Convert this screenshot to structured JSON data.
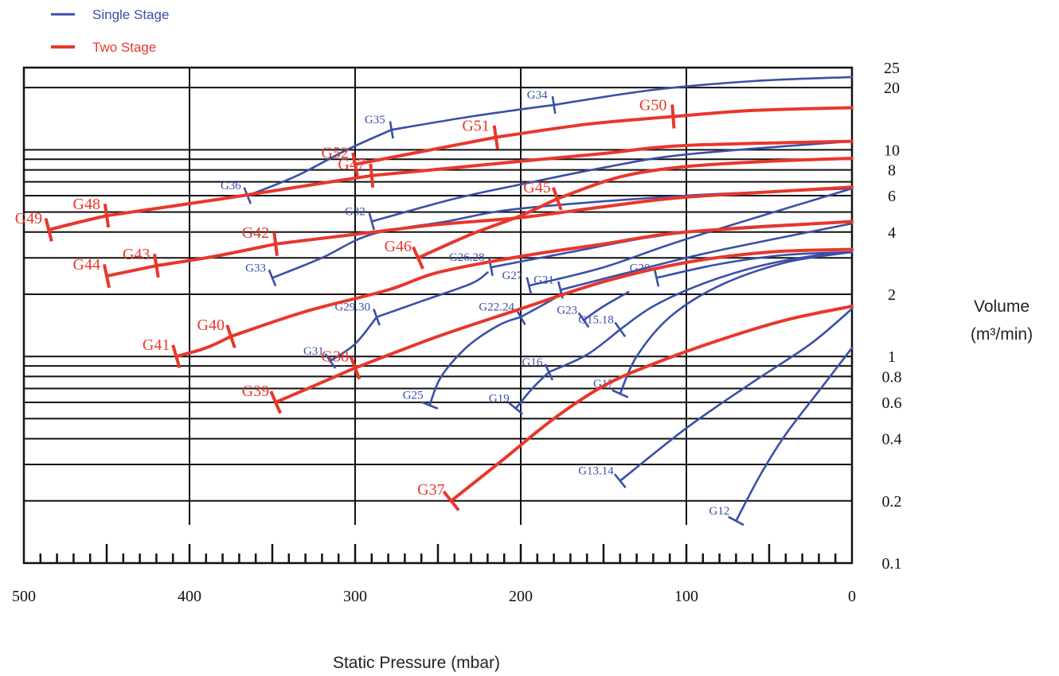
{
  "legend": [
    {
      "label": "Single Stage",
      "color": "#3a4fa8"
    },
    {
      "label": "Two Stage",
      "color": "#e8372c"
    }
  ],
  "colors": {
    "single": "#3a4fa8",
    "two": "#e8372c",
    "grid": "#111111"
  },
  "chart_data": {
    "type": "line",
    "xlabel": "Static Pressure (mbar)",
    "ylabel_line1": "Volume",
    "ylabel_line2": "(m³/min)",
    "x_range": [
      500,
      0
    ],
    "x_reversed": true,
    "y_scale": "log",
    "y_range": [
      0.1,
      25
    ],
    "grid": true,
    "legend_position": "top-left",
    "x_ticks": [
      {
        "value": 500,
        "label": "500"
      },
      {
        "value": 400,
        "label": "400"
      },
      {
        "value": 300,
        "label": "300"
      },
      {
        "value": 200,
        "label": "200"
      },
      {
        "value": 100,
        "label": "100"
      },
      {
        "value": 0,
        "label": "0"
      }
    ],
    "y_ticks": [
      {
        "value": 25,
        "label": "25"
      },
      {
        "value": 20,
        "label": "20"
      },
      {
        "value": 10,
        "label": "10"
      },
      {
        "value": 8,
        "label": "8"
      },
      {
        "value": 6,
        "label": "6"
      },
      {
        "value": 4,
        "label": "4"
      },
      {
        "value": 2,
        "label": "2"
      },
      {
        "value": 1,
        "label": "1"
      },
      {
        "value": 0.8,
        "label": "0.8"
      },
      {
        "value": 0.6,
        "label": "0.6"
      },
      {
        "value": 0.4,
        "label": "0.4"
      },
      {
        "value": 0.2,
        "label": "0.2"
      },
      {
        "value": 0.1,
        "label": "0.1"
      }
    ],
    "series": [
      {
        "name": "G34",
        "stage": "single",
        "points": [
          [
            180,
            16.5
          ],
          [
            120,
            19.5
          ],
          [
            60,
            21.5
          ],
          [
            0,
            22.5
          ]
        ]
      },
      {
        "name": "G35",
        "stage": "single",
        "points": [
          [
            278,
            12.5
          ],
          [
            230,
            14.5
          ],
          [
            180,
            16.5
          ]
        ]
      },
      {
        "name": "G36",
        "stage": "single",
        "points": [
          [
            365,
            6
          ],
          [
            335,
            7.5
          ],
          [
            305,
            10
          ],
          [
            278,
            12.5
          ]
        ]
      },
      {
        "name": "G32",
        "stage": "single",
        "points": [
          [
            290,
            4.5
          ],
          [
            240,
            5.8
          ],
          [
            200,
            6.8
          ],
          [
            150,
            8.2
          ],
          [
            100,
            9.5
          ],
          [
            0,
            11
          ]
        ]
      },
      {
        "name": "G33",
        "stage": "single",
        "points": [
          [
            350,
            2.4
          ],
          [
            320,
            3
          ],
          [
            290,
            3.9
          ],
          [
            245,
            4.5
          ],
          [
            200,
            5.2
          ],
          [
            100,
            6
          ],
          [
            0,
            6.5
          ]
        ]
      },
      {
        "name": "G26.28",
        "stage": "single",
        "points": [
          [
            218,
            2.7
          ],
          [
            170,
            3.2
          ],
          [
            120,
            3.8
          ],
          [
            70,
            4.2
          ],
          [
            0,
            4.5
          ]
        ]
      },
      {
        "name": "G29.30",
        "stage": "single",
        "points": [
          [
            287,
            1.55
          ],
          [
            260,
            1.85
          ],
          [
            230,
            2.25
          ],
          [
            220,
            2.55
          ]
        ]
      },
      {
        "name": "G31",
        "stage": "single",
        "points": [
          [
            315,
            0.95
          ],
          [
            300,
            1.15
          ],
          [
            287,
            1.55
          ]
        ]
      },
      {
        "name": "G27",
        "stage": "single",
        "points": [
          [
            195,
            2.2
          ],
          [
            150,
            2.7
          ],
          [
            100,
            3.7
          ],
          [
            0,
            6.5
          ]
        ]
      },
      {
        "name": "G21",
        "stage": "single",
        "points": [
          [
            176,
            2.1
          ],
          [
            135,
            2.55
          ],
          [
            85,
            3.2
          ],
          [
            0,
            4.4
          ]
        ]
      },
      {
        "name": "G22.24",
        "stage": "single",
        "points": [
          [
            200,
            1.55
          ],
          [
            178,
            1.95
          ],
          [
            176,
            2.1
          ]
        ]
      },
      {
        "name": "G25",
        "stage": "single",
        "points": [
          [
            255,
            0.58
          ],
          [
            248,
            0.8
          ],
          [
            232,
            1.12
          ],
          [
            213,
            1.42
          ],
          [
            200,
            1.55
          ]
        ]
      },
      {
        "name": "G23",
        "stage": "single",
        "points": [
          [
            162,
            1.5
          ],
          [
            150,
            1.75
          ],
          [
            135,
            2.05
          ]
        ]
      },
      {
        "name": "G20",
        "stage": "single",
        "points": [
          [
            118,
            2.4
          ],
          [
            80,
            2.8
          ],
          [
            40,
            3.1
          ],
          [
            0,
            3.2
          ]
        ]
      },
      {
        "name": "G15.18",
        "stage": "single",
        "points": [
          [
            140,
            1.35
          ],
          [
            120,
            1.75
          ],
          [
            90,
            2.25
          ],
          [
            55,
            2.75
          ],
          [
            20,
            3.1
          ],
          [
            0,
            3.2
          ]
        ]
      },
      {
        "name": "G16",
        "stage": "single",
        "points": [
          [
            183,
            0.84
          ],
          [
            160,
            1.02
          ],
          [
            140,
            1.35
          ]
        ]
      },
      {
        "name": "G19",
        "stage": "single",
        "points": [
          [
            203,
            0.56
          ],
          [
            193,
            0.7
          ],
          [
            183,
            0.84
          ]
        ]
      },
      {
        "name": "G17",
        "stage": "single",
        "points": [
          [
            140,
            0.66
          ],
          [
            130,
            1.0
          ],
          [
            110,
            1.55
          ],
          [
            80,
            2.2
          ],
          [
            40,
            2.85
          ],
          [
            0,
            3.2
          ]
        ]
      },
      {
        "name": "G13.14",
        "stage": "single",
        "points": [
          [
            140,
            0.25
          ],
          [
            100,
            0.45
          ],
          [
            60,
            0.75
          ],
          [
            25,
            1.15
          ],
          [
            0,
            1.7
          ]
        ]
      },
      {
        "name": "G12",
        "stage": "single",
        "points": [
          [
            70,
            0.16
          ],
          [
            55,
            0.27
          ],
          [
            40,
            0.42
          ],
          [
            20,
            0.68
          ],
          [
            0,
            1.1
          ]
        ]
      },
      {
        "name": "G50",
        "stage": "two",
        "points": [
          [
            108,
            14.5
          ],
          [
            60,
            15.5
          ],
          [
            0,
            16
          ]
        ]
      },
      {
        "name": "G51",
        "stage": "two",
        "points": [
          [
            215,
            11.5
          ],
          [
            160,
            13.3
          ],
          [
            108,
            14.5
          ]
        ]
      },
      {
        "name": "G52",
        "stage": "two",
        "points": [
          [
            300,
            8.5
          ],
          [
            260,
            9.8
          ],
          [
            215,
            11.5
          ]
        ]
      },
      {
        "name": "G47",
        "stage": "two",
        "points": [
          [
            290,
            7.5
          ],
          [
            200,
            8.8
          ],
          [
            150,
            9.6
          ],
          [
            100,
            10.5
          ],
          [
            0,
            11
          ]
        ]
      },
      {
        "name": "G48",
        "stage": "two",
        "points": [
          [
            450,
            4.8
          ],
          [
            380,
            5.8
          ],
          [
            330,
            6.7
          ],
          [
            290,
            7.5
          ]
        ]
      },
      {
        "name": "G49",
        "stage": "two",
        "points": [
          [
            485,
            4.1
          ],
          [
            465,
            4.5
          ],
          [
            450,
            4.8
          ]
        ]
      },
      {
        "name": "G45",
        "stage": "two",
        "points": [
          [
            178,
            5.8
          ],
          [
            140,
            7.4
          ],
          [
            100,
            8.3
          ],
          [
            50,
            8.8
          ],
          [
            0,
            9.1
          ]
        ]
      },
      {
        "name": "G46",
        "stage": "two",
        "points": [
          [
            262,
            3.0
          ],
          [
            230,
            3.9
          ],
          [
            200,
            4.8
          ],
          [
            178,
            5.8
          ]
        ]
      },
      {
        "name": "G42",
        "stage": "two",
        "points": [
          [
            348,
            3.5
          ],
          [
            300,
            3.9
          ],
          [
            250,
            4.35
          ],
          [
            200,
            4.7
          ],
          [
            150,
            5.3
          ],
          [
            100,
            5.9
          ],
          [
            0,
            6.6
          ]
        ]
      },
      {
        "name": "G43",
        "stage": "two",
        "points": [
          [
            420,
            2.75
          ],
          [
            385,
            3.05
          ],
          [
            348,
            3.5
          ]
        ]
      },
      {
        "name": "G44",
        "stage": "two",
        "points": [
          [
            450,
            2.45
          ],
          [
            420,
            2.75
          ]
        ]
      },
      {
        "name": "G40",
        "stage": "two",
        "points": [
          [
            375,
            1.25
          ],
          [
            330,
            1.65
          ],
          [
            280,
            2.1
          ],
          [
            250,
            2.55
          ],
          [
            200,
            3.05
          ],
          [
            150,
            3.5
          ],
          [
            100,
            4.0
          ],
          [
            0,
            4.5
          ]
        ]
      },
      {
        "name": "G41",
        "stage": "two",
        "points": [
          [
            408,
            1.0
          ],
          [
            390,
            1.1
          ],
          [
            375,
            1.25
          ]
        ]
      },
      {
        "name": "G38",
        "stage": "two",
        "points": [
          [
            300,
            0.88
          ],
          [
            250,
            1.25
          ],
          [
            200,
            1.7
          ],
          [
            150,
            2.3
          ],
          [
            100,
            2.85
          ],
          [
            50,
            3.2
          ],
          [
            0,
            3.3
          ]
        ]
      },
      {
        "name": "G39",
        "stage": "two",
        "points": [
          [
            348,
            0.6
          ],
          [
            325,
            0.72
          ],
          [
            300,
            0.88
          ]
        ]
      },
      {
        "name": "G37",
        "stage": "two",
        "points": [
          [
            242,
            0.2
          ],
          [
            210,
            0.32
          ],
          [
            180,
            0.5
          ],
          [
            150,
            0.72
          ],
          [
            120,
            0.92
          ],
          [
            80,
            1.2
          ],
          [
            40,
            1.5
          ],
          [
            0,
            1.75
          ]
        ]
      }
    ]
  }
}
